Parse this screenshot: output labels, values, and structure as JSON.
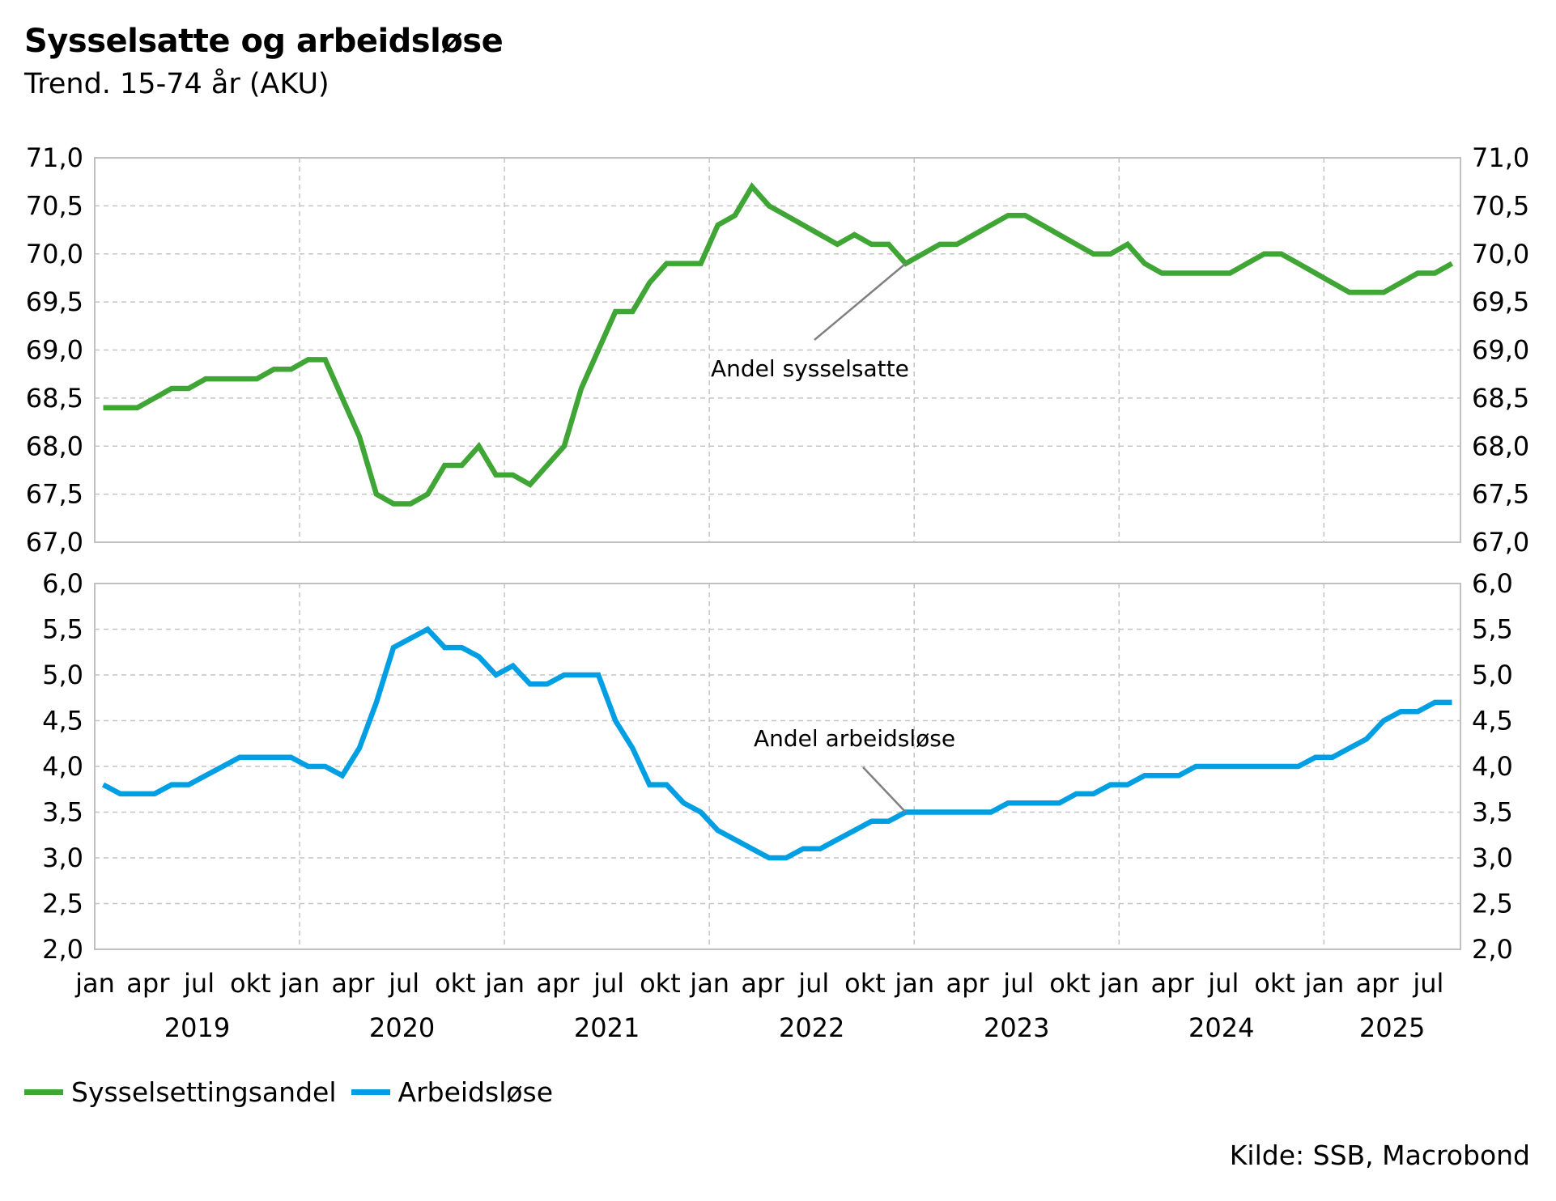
{
  "header": {
    "title": "Sysselsatte og arbeidsløse",
    "subtitle": "Trend. 15-74 år (AKU)"
  },
  "legend": [
    {
      "label": "Sysselsettingsandel",
      "color": "#3fa535"
    },
    {
      "label": "Arbeidsløse",
      "color": "#009fe3"
    }
  ],
  "source": "Kilde: SSB, Macrobond",
  "chart_data": [
    {
      "type": "line",
      "panel": "top",
      "title": "",
      "ylim": [
        67.0,
        71.0
      ],
      "yticks": [
        "67,0",
        "67,5",
        "68,0",
        "68,5",
        "69,0",
        "69,5",
        "70,0",
        "70,5",
        "71,0"
      ],
      "ytick_values": [
        67.0,
        67.5,
        68.0,
        68.5,
        69.0,
        69.5,
        70.0,
        70.5,
        71.0
      ],
      "y_axes": "left-and-right",
      "grid": true,
      "annotation": {
        "text": "Andel sysselsatte",
        "points_to": "2022-12"
      },
      "series": [
        {
          "name": "Sysselsettingsandel",
          "color": "#3fa535",
          "start": "2019-01",
          "frequency": "monthly",
          "values": [
            68.4,
            68.4,
            68.4,
            68.5,
            68.6,
            68.6,
            68.7,
            68.7,
            68.7,
            68.7,
            68.8,
            68.8,
            68.9,
            68.9,
            68.5,
            68.1,
            67.5,
            67.4,
            67.4,
            67.5,
            67.8,
            67.8,
            68.0,
            67.7,
            67.7,
            67.6,
            67.8,
            68.0,
            68.6,
            69.0,
            69.4,
            69.4,
            69.7,
            69.9,
            69.9,
            69.9,
            70.3,
            70.4,
            70.7,
            70.5,
            70.4,
            70.3,
            70.2,
            70.1,
            70.2,
            70.1,
            70.1,
            69.9,
            70.0,
            70.1,
            70.1,
            70.2,
            70.3,
            70.4,
            70.4,
            70.3,
            70.2,
            70.1,
            70.0,
            70.0,
            70.1,
            69.9,
            69.8,
            69.8,
            69.8,
            69.8,
            69.8,
            69.9,
            70.0,
            70.0,
            69.9,
            69.8,
            69.7,
            69.6,
            69.6,
            69.6,
            69.7,
            69.8,
            69.8,
            69.9
          ]
        }
      ]
    },
    {
      "type": "line",
      "panel": "bottom",
      "title": "",
      "ylim": [
        2.0,
        6.0
      ],
      "yticks": [
        "2,0",
        "2,5",
        "3,0",
        "3,5",
        "4,0",
        "4,5",
        "5,0",
        "5,5",
        "6,0"
      ],
      "ytick_values": [
        2.0,
        2.5,
        3.0,
        3.5,
        4.0,
        4.5,
        5.0,
        5.5,
        6.0
      ],
      "y_axes": "left-and-right",
      "grid": true,
      "annotation": {
        "text": "Andel arbeidsløse",
        "points_to": "2022-12"
      },
      "series": [
        {
          "name": "Arbeidsløse",
          "color": "#009fe3",
          "start": "2019-01",
          "frequency": "monthly",
          "values": [
            3.8,
            3.7,
            3.7,
            3.7,
            3.8,
            3.8,
            3.9,
            4.0,
            4.1,
            4.1,
            4.1,
            4.1,
            4.0,
            4.0,
            3.9,
            4.2,
            4.7,
            5.3,
            5.4,
            5.5,
            5.3,
            5.3,
            5.2,
            5.0,
            5.1,
            4.9,
            4.9,
            5.0,
            5.0,
            5.0,
            4.5,
            4.2,
            3.8,
            3.8,
            3.6,
            3.5,
            3.3,
            3.2,
            3.1,
            3.0,
            3.0,
            3.1,
            3.1,
            3.2,
            3.3,
            3.4,
            3.4,
            3.5,
            3.5,
            3.5,
            3.5,
            3.5,
            3.5,
            3.6,
            3.6,
            3.6,
            3.6,
            3.7,
            3.7,
            3.8,
            3.8,
            3.9,
            3.9,
            3.9,
            4.0,
            4.0,
            4.0,
            4.0,
            4.0,
            4.0,
            4.0,
            4.1,
            4.1,
            4.2,
            4.3,
            4.5,
            4.6,
            4.6,
            4.7,
            4.7
          ]
        }
      ]
    }
  ],
  "x_axis": {
    "month_labels": [
      "jan",
      "apr",
      "jul",
      "okt"
    ],
    "years": [
      "2019",
      "2020",
      "2021",
      "2022",
      "2023",
      "2024",
      "2025"
    ],
    "start": "2019-01",
    "end": "2025-08"
  }
}
